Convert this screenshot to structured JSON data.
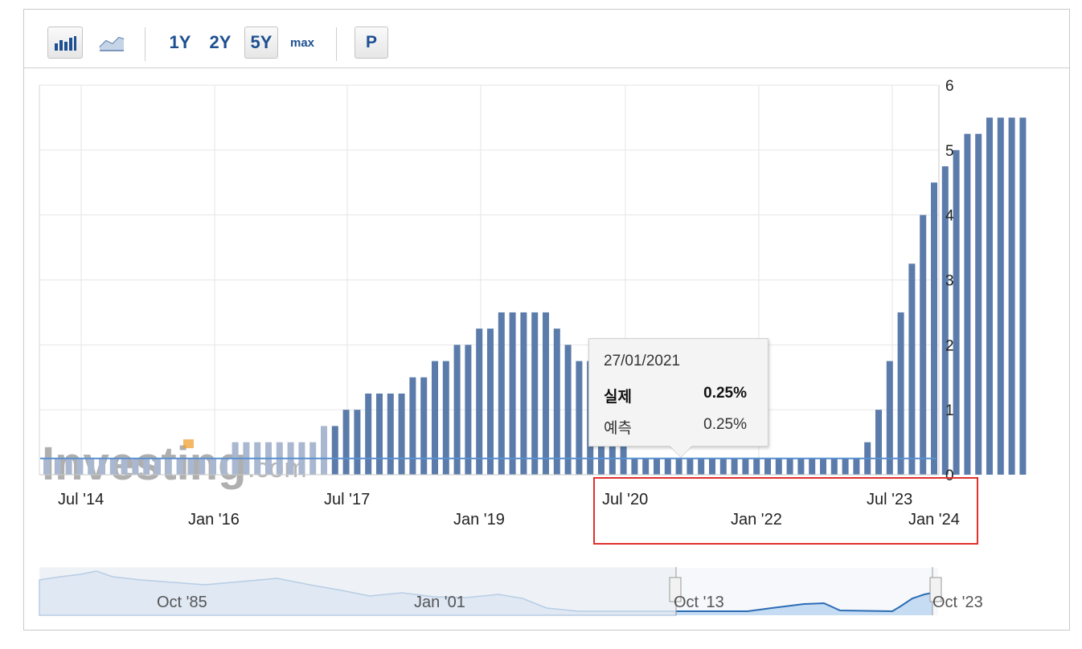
{
  "toolbar": {
    "bar_chart_icon": "bar-chart-icon",
    "line_chart_icon": "line-chart-icon",
    "range_1y": "1Y",
    "range_2y": "2Y",
    "range_5y": "5Y",
    "range_max": "max",
    "p_label": "P"
  },
  "watermark": {
    "brand": "Investing",
    "suffix": ".com"
  },
  "tooltip": {
    "date": "27/01/2021",
    "actual_label": "실제",
    "actual_value": "0.25%",
    "forecast_label": "예측",
    "forecast_value": "0.25%"
  },
  "colors": {
    "bar": "#5b7cab",
    "bar_faded": "#a9b8d0",
    "ref_line": "#5a8fcf",
    "highlight_box": "#e0312d",
    "navigator_fill": "#c6dcf3",
    "navigator_line": "#2b6cb5"
  },
  "navigator": {
    "labels": [
      "Oct '85",
      "Jan '01",
      "Oct '13",
      "Oct '23"
    ]
  },
  "chart_data": {
    "type": "bar",
    "ylim": [
      0,
      6
    ],
    "y_ticks": [
      "0",
      "1",
      "2",
      "3",
      "4",
      "5",
      "6"
    ],
    "x_tick_labels_row1": [
      "Jul '14",
      "Jul '17",
      "Jul '20",
      "Jul '23"
    ],
    "x_tick_labels_row2": [
      "Jan '16",
      "Jan '19",
      "Jan '22",
      "Jan '24"
    ],
    "reference_value": 0.25,
    "grid": true,
    "series": [
      {
        "values": [
          0.25,
          0.25,
          0.25,
          0.25,
          0.25,
          0.25,
          0.25,
          0.25,
          0.25,
          0.25,
          0.25,
          0.25,
          0.25,
          0.25,
          0.25,
          0.25,
          0.25,
          0.5,
          0.5,
          0.5,
          0.5,
          0.5,
          0.5,
          0.5,
          0.5,
          0.75,
          0.75,
          1,
          1,
          1.25,
          1.25,
          1.25,
          1.25,
          1.5,
          1.5,
          1.75,
          1.75,
          2,
          2,
          2.25,
          2.25,
          2.5,
          2.5,
          2.5,
          2.5,
          2.5,
          2.25,
          2,
          1.75,
          1.75,
          1.75,
          1.5,
          1.5,
          0.25,
          0.25,
          0.25,
          0.25,
          0.25,
          0.25,
          0.25,
          0.25,
          0.25,
          0.25,
          0.25,
          0.25,
          0.25,
          0.25,
          0.25,
          0.25,
          0.25,
          0.25,
          0.25,
          0.25,
          0.25,
          0.5,
          1,
          1.75,
          2.5,
          3.25,
          4,
          4.5,
          4.75,
          5,
          5.25,
          5.25,
          5.5,
          5.5,
          5.5,
          5.5
        ],
        "faded_count": 26
      }
    ]
  }
}
